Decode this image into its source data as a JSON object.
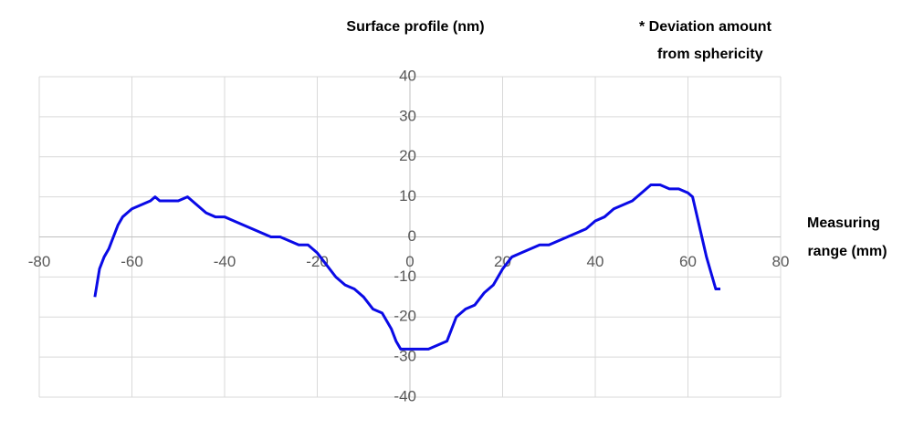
{
  "chart_data": {
    "type": "line",
    "y_label": "Surface profile (nm)",
    "x_label": [
      "Measuring",
      "range (mm)"
    ],
    "note": [
      "* Deviation amount",
      "from sphericity"
    ],
    "xlim": [
      -80,
      80
    ],
    "xticks": [
      -80,
      -60,
      -40,
      -20,
      0,
      20,
      40,
      60,
      80
    ],
    "ylim": [
      -40,
      40
    ],
    "yticks": [
      -40,
      -30,
      -20,
      -10,
      0,
      10,
      20,
      30,
      40
    ],
    "grid": true,
    "x": [
      -68,
      -67,
      -66,
      -65,
      -64,
      -63,
      -62,
      -61,
      -60,
      -58,
      -56,
      -55,
      -54,
      -52,
      -50,
      -48,
      -47,
      -46,
      -44,
      -42,
      -40,
      -38,
      -36,
      -34,
      -32,
      -30,
      -28,
      -26,
      -24,
      -22,
      -20,
      -18,
      -16,
      -14,
      -12,
      -10,
      -8,
      -6,
      -4,
      -3,
      -2,
      0,
      2,
      4,
      6,
      8,
      10,
      12,
      14,
      16,
      18,
      20,
      22,
      24,
      26,
      28,
      30,
      32,
      34,
      36,
      38,
      40,
      42,
      44,
      46,
      48,
      50,
      52,
      54,
      56,
      58,
      60,
      61,
      62,
      63,
      64,
      65,
      66,
      67
    ],
    "series": [
      {
        "color": "#0a0ae6",
        "values": [
          -15,
          -8,
          -5,
          -3,
          0,
          3,
          5,
          6,
          7,
          8,
          9,
          10,
          9,
          9,
          9,
          10,
          9,
          8,
          6,
          5,
          5,
          4,
          3,
          2,
          1,
          0,
          0,
          -1,
          -2,
          -2,
          -4,
          -7,
          -10,
          -12,
          -13,
          -15,
          -18,
          -19,
          -23,
          -26,
          -28,
          -28,
          -28,
          -28,
          -27,
          -26,
          -20,
          -18,
          -17,
          -14,
          -12,
          -8,
          -5,
          -4,
          -3,
          -2,
          -2,
          -1,
          0,
          1,
          2,
          4,
          5,
          7,
          8,
          9,
          11,
          13,
          13,
          12,
          12,
          11,
          10,
          5,
          0,
          -5,
          -9,
          -13,
          -13
        ]
      }
    ]
  }
}
